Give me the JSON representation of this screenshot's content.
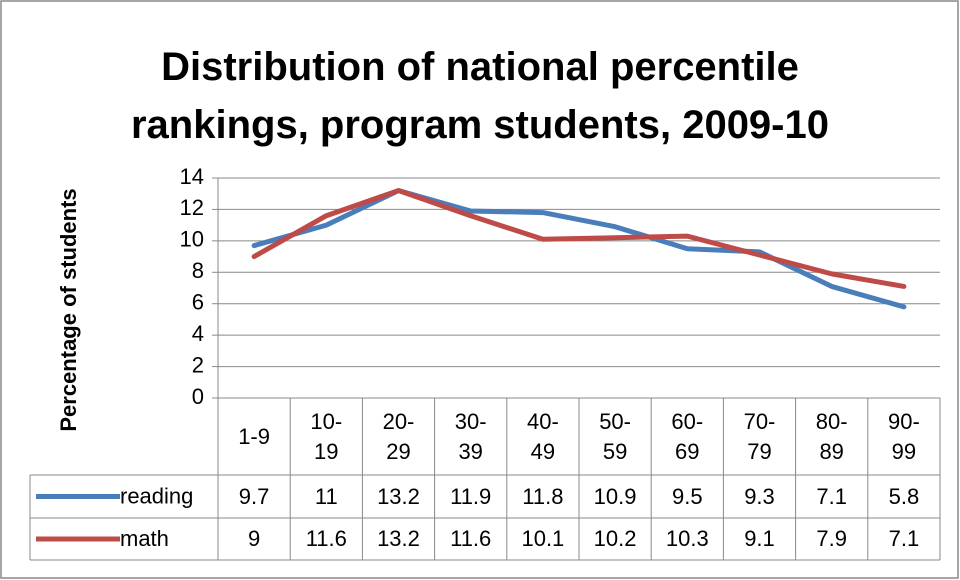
{
  "chart_data": {
    "type": "line",
    "title": "Distribution of national percentile rankings, program students, 2009-10",
    "y_label": "Percentage of students",
    "categories": [
      "1-9",
      "10-19",
      "20-29",
      "30-39",
      "40-49",
      "50-59",
      "60-69",
      "70-79",
      "80-89",
      "90-99"
    ],
    "series": [
      {
        "name": "reading",
        "color": "#4a7ebb",
        "values": [
          9.7,
          11,
          13.2,
          11.9,
          11.8,
          10.9,
          9.5,
          9.3,
          7.1,
          5.8
        ]
      },
      {
        "name": "math",
        "color": "#be4b48",
        "values": [
          9,
          11.6,
          13.2,
          11.6,
          10.1,
          10.2,
          10.3,
          9.1,
          7.9,
          7.1
        ]
      }
    ],
    "ylim": [
      0,
      14
    ],
    "yticks": [
      0,
      2,
      4,
      6,
      8,
      10,
      12,
      14
    ],
    "grid": true,
    "data_table": true
  }
}
